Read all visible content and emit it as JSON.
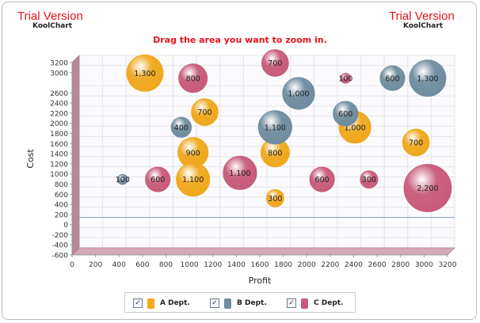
{
  "watermark": {
    "left_title": "Trial Version",
    "left_sub": "KoolChart",
    "right_title": "Trial Version",
    "right_sub": "KoolChart"
  },
  "zoom_hint": "Drag the area you want to zoom in.",
  "colors": {
    "a": "#f0a81c",
    "b": "#6f8d9f",
    "c": "#c85a7a",
    "wall": "#b88898",
    "zero_line": "#7fa3c4"
  },
  "legend": [
    {
      "label": "A Dept.",
      "checked": true,
      "color_key": "a"
    },
    {
      "label": "B Dept.",
      "checked": true,
      "color_key": "b"
    },
    {
      "label": "C Dept.",
      "checked": true,
      "color_key": "c"
    }
  ],
  "chart_data": {
    "type": "scatter",
    "subtype": "bubble-3d",
    "xlabel": "Profit",
    "ylabel": "Cost",
    "xlim": [
      0,
      3200
    ],
    "ylim": [
      -600,
      3200
    ],
    "x_ticks": [
      "0",
      "200",
      "400",
      "600",
      "800",
      "1000",
      "1200",
      "1400",
      "1600",
      "1800",
      "2000",
      "2200",
      "2400",
      "2600",
      "2800",
      "3000",
      "3200"
    ],
    "y_ticks": [
      "-600",
      "-400",
      "-200",
      "0",
      "200",
      "400",
      "600",
      "800",
      "1000",
      "1200",
      "1400",
      "1600",
      "1800",
      "2000",
      "2200",
      "2400",
      "2600",
      "3000",
      "3200"
    ],
    "grid": true,
    "legend_position": "bottom",
    "series": [
      {
        "name": "A Dept.",
        "points": [
          {
            "x": 560,
            "y": 2850,
            "size": 1300,
            "label": "1,300"
          },
          {
            "x": 1070,
            "y": 2080,
            "size": 700,
            "label": "700"
          },
          {
            "x": 970,
            "y": 1280,
            "size": 900,
            "label": "900"
          },
          {
            "x": 970,
            "y": 750,
            "size": 1100,
            "label": "1,100"
          },
          {
            "x": 1670,
            "y": 1280,
            "size": 800,
            "label": "800"
          },
          {
            "x": 2350,
            "y": 1780,
            "size": 1000,
            "label": "1,000"
          },
          {
            "x": 2870,
            "y": 1480,
            "size": 700,
            "label": "700"
          },
          {
            "x": 1670,
            "y": 380,
            "size": 300,
            "label": "300"
          }
        ]
      },
      {
        "name": "B Dept.",
        "points": [
          {
            "x": 1870,
            "y": 2450,
            "size": 1000,
            "label": "1,000"
          },
          {
            "x": 2670,
            "y": 2750,
            "size": 600,
            "label": "600"
          },
          {
            "x": 2970,
            "y": 2750,
            "size": 1300,
            "label": "1,300"
          },
          {
            "x": 870,
            "y": 1780,
            "size": 400,
            "label": "400"
          },
          {
            "x": 1670,
            "y": 1780,
            "size": 1100,
            "label": "1,100"
          },
          {
            "x": 2270,
            "y": 2050,
            "size": 600,
            "label": "600"
          },
          {
            "x": 370,
            "y": 750,
            "size": 100,
            "label": "100"
          }
        ]
      },
      {
        "name": "C Dept.",
        "points": [
          {
            "x": 970,
            "y": 2750,
            "size": 800,
            "label": "800"
          },
          {
            "x": 1670,
            "y": 3050,
            "size": 700,
            "label": "700"
          },
          {
            "x": 2270,
            "y": 2750,
            "size": 100,
            "label": "100"
          },
          {
            "x": 1370,
            "y": 880,
            "size": 1100,
            "label": "1,100"
          },
          {
            "x": 670,
            "y": 750,
            "size": 600,
            "label": "600"
          },
          {
            "x": 2070,
            "y": 750,
            "size": 600,
            "label": "600"
          },
          {
            "x": 2470,
            "y": 750,
            "size": 300,
            "label": "300"
          },
          {
            "x": 2970,
            "y": 580,
            "size": 2200,
            "label": "2,200"
          }
        ]
      }
    ]
  }
}
